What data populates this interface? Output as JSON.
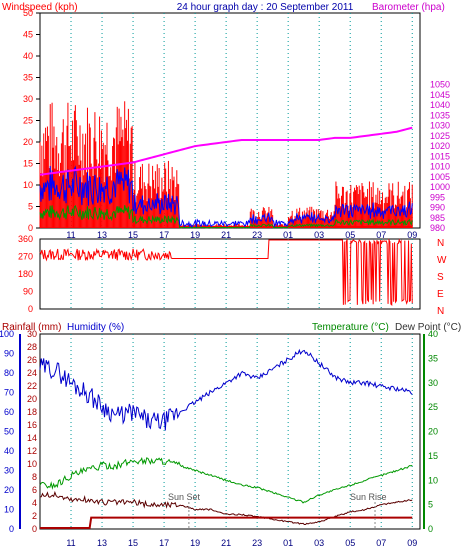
{
  "chart_data": [
    {
      "type": "line",
      "title": "24 hour graph day : 20 September 2011",
      "left_label": "Windspeed (kph)",
      "right_label": "Barometer (hpa)",
      "x_ticks": [
        "11",
        "13",
        "15",
        "17",
        "19",
        "21",
        "23",
        "01",
        "03",
        "05",
        "07",
        "09"
      ],
      "left_ticks": [
        0,
        5,
        10,
        15,
        20,
        25,
        30,
        35,
        40,
        45,
        50
      ],
      "right_ticks": [
        980,
        985,
        990,
        995,
        1000,
        1005,
        1010,
        1015,
        1020,
        1025,
        1030,
        1035,
        1040,
        1045,
        1050
      ],
      "left_ylim": [
        0,
        50
      ],
      "right_ylim": [
        980,
        1085
      ],
      "barometer": {
        "hours": [
          9,
          10,
          11,
          12,
          13,
          14,
          15,
          16,
          17,
          18,
          19,
          20,
          21,
          22,
          23,
          24,
          25,
          26,
          27,
          28,
          29,
          30,
          31,
          32,
          33
        ],
        "values": [
          1006,
          1007,
          1008,
          1009,
          1010,
          1011,
          1012,
          1014,
          1016,
          1018,
          1020,
          1021,
          1022,
          1023,
          1023,
          1023,
          1023,
          1023,
          1023,
          1024,
          1024,
          1025,
          1026,
          1027,
          1029
        ]
      },
      "wind_gust_approx_kph": [
        {
          "from": 9,
          "to": 15,
          "range": [
            0,
            30
          ]
        },
        {
          "from": 15,
          "to": 18,
          "range": [
            0,
            16
          ]
        },
        {
          "from": 18,
          "to": 22.5,
          "range": [
            0,
            1
          ]
        },
        {
          "from": 22.5,
          "to": 24,
          "range": [
            0,
            5
          ]
        },
        {
          "from": 24,
          "to": 25,
          "range": [
            0,
            1
          ]
        },
        {
          "from": 25,
          "to": 28,
          "range": [
            0,
            5
          ]
        },
        {
          "from": 28,
          "to": 33,
          "range": [
            0,
            11
          ]
        }
      ]
    },
    {
      "type": "line",
      "left_ticks": [
        0,
        90,
        180,
        270,
        360
      ],
      "right_labels": [
        "N",
        "W",
        "S",
        "E",
        "N"
      ],
      "x_ticks": [
        "11",
        "13",
        "15",
        "17",
        "19",
        "21",
        "23",
        "01",
        "03",
        "05",
        "07",
        "09"
      ],
      "direction_approx_deg": [
        {
          "from": 9,
          "to": 17.5,
          "value": 280
        },
        {
          "from": 17.5,
          "to": 23.7,
          "value": 260
        },
        {
          "from": 23.7,
          "to": 28.5,
          "value": 355
        },
        {
          "from": 28.5,
          "to": 33,
          "value": 355,
          "note_scatter_to": 20
        }
      ]
    },
    {
      "type": "line",
      "labels": {
        "rain": "Rainfall (mm)",
        "humidity": "Humidity (%)",
        "temperature": "Temperature (°C)",
        "dew": "Dew Point (°C)"
      },
      "humidity_ticks": [
        0,
        10,
        20,
        30,
        40,
        50,
        60,
        70,
        80,
        90,
        100
      ],
      "rain_ticks": [
        0,
        2,
        4,
        6,
        8,
        10,
        12,
        14,
        16,
        18,
        20,
        22,
        24,
        26,
        28,
        30
      ],
      "temp_ticks": [
        0,
        5,
        10,
        15,
        20,
        25,
        30,
        35,
        40
      ],
      "x_ticks": [
        "11",
        "13",
        "15",
        "17",
        "19",
        "21",
        "23",
        "01",
        "03",
        "05",
        "07",
        "09"
      ],
      "annotations": {
        "sun_set": "Sun Set",
        "sun_rise": "Sun Rise"
      },
      "sun_set_hour": 18.6,
      "sun_rise_hour": 30.6,
      "humidity": {
        "hours": [
          9,
          10,
          11,
          12,
          13,
          14,
          15,
          16,
          17,
          18,
          19,
          20,
          21,
          22,
          23,
          24,
          25,
          26,
          27,
          28,
          29,
          30,
          31,
          32,
          33
        ],
        "values": [
          83,
          82,
          75,
          70,
          63,
          58,
          60,
          55,
          55,
          60,
          65,
          70,
          75,
          80,
          77,
          82,
          87,
          92,
          85,
          78,
          75,
          75,
          73,
          72,
          70
        ]
      },
      "temperature": {
        "hours": [
          9,
          10,
          11,
          12,
          13,
          14,
          15,
          16,
          17,
          18,
          19,
          20,
          21,
          22,
          23,
          24,
          25,
          26,
          27,
          28,
          29,
          30,
          31,
          32,
          33
        ],
        "values": [
          9,
          9,
          11,
          12,
          13,
          13,
          14,
          14,
          14,
          13,
          12,
          11,
          10,
          9,
          8.5,
          7.5,
          6.5,
          5.5,
          7,
          8,
          9,
          10,
          11,
          12,
          13
        ]
      },
      "dew_point": {
        "hours": [
          9,
          10,
          11,
          12,
          13,
          14,
          15,
          16,
          17,
          18,
          19,
          20,
          21,
          22,
          23,
          24,
          25,
          26,
          27,
          28,
          29,
          30,
          31,
          32,
          33
        ],
        "values": [
          7,
          7,
          6,
          6,
          5.5,
          5.5,
          5.5,
          5,
          5,
          5,
          4,
          4,
          3,
          3,
          2.5,
          2,
          1.5,
          1,
          1.5,
          2.5,
          3.5,
          4,
          5,
          5.5,
          6
        ]
      },
      "rainfall_total_mm": {
        "hours": [
          9,
          12.2,
          12.3,
          33
        ],
        "values": [
          0,
          0,
          0.2,
          0.2
        ]
      }
    }
  ]
}
